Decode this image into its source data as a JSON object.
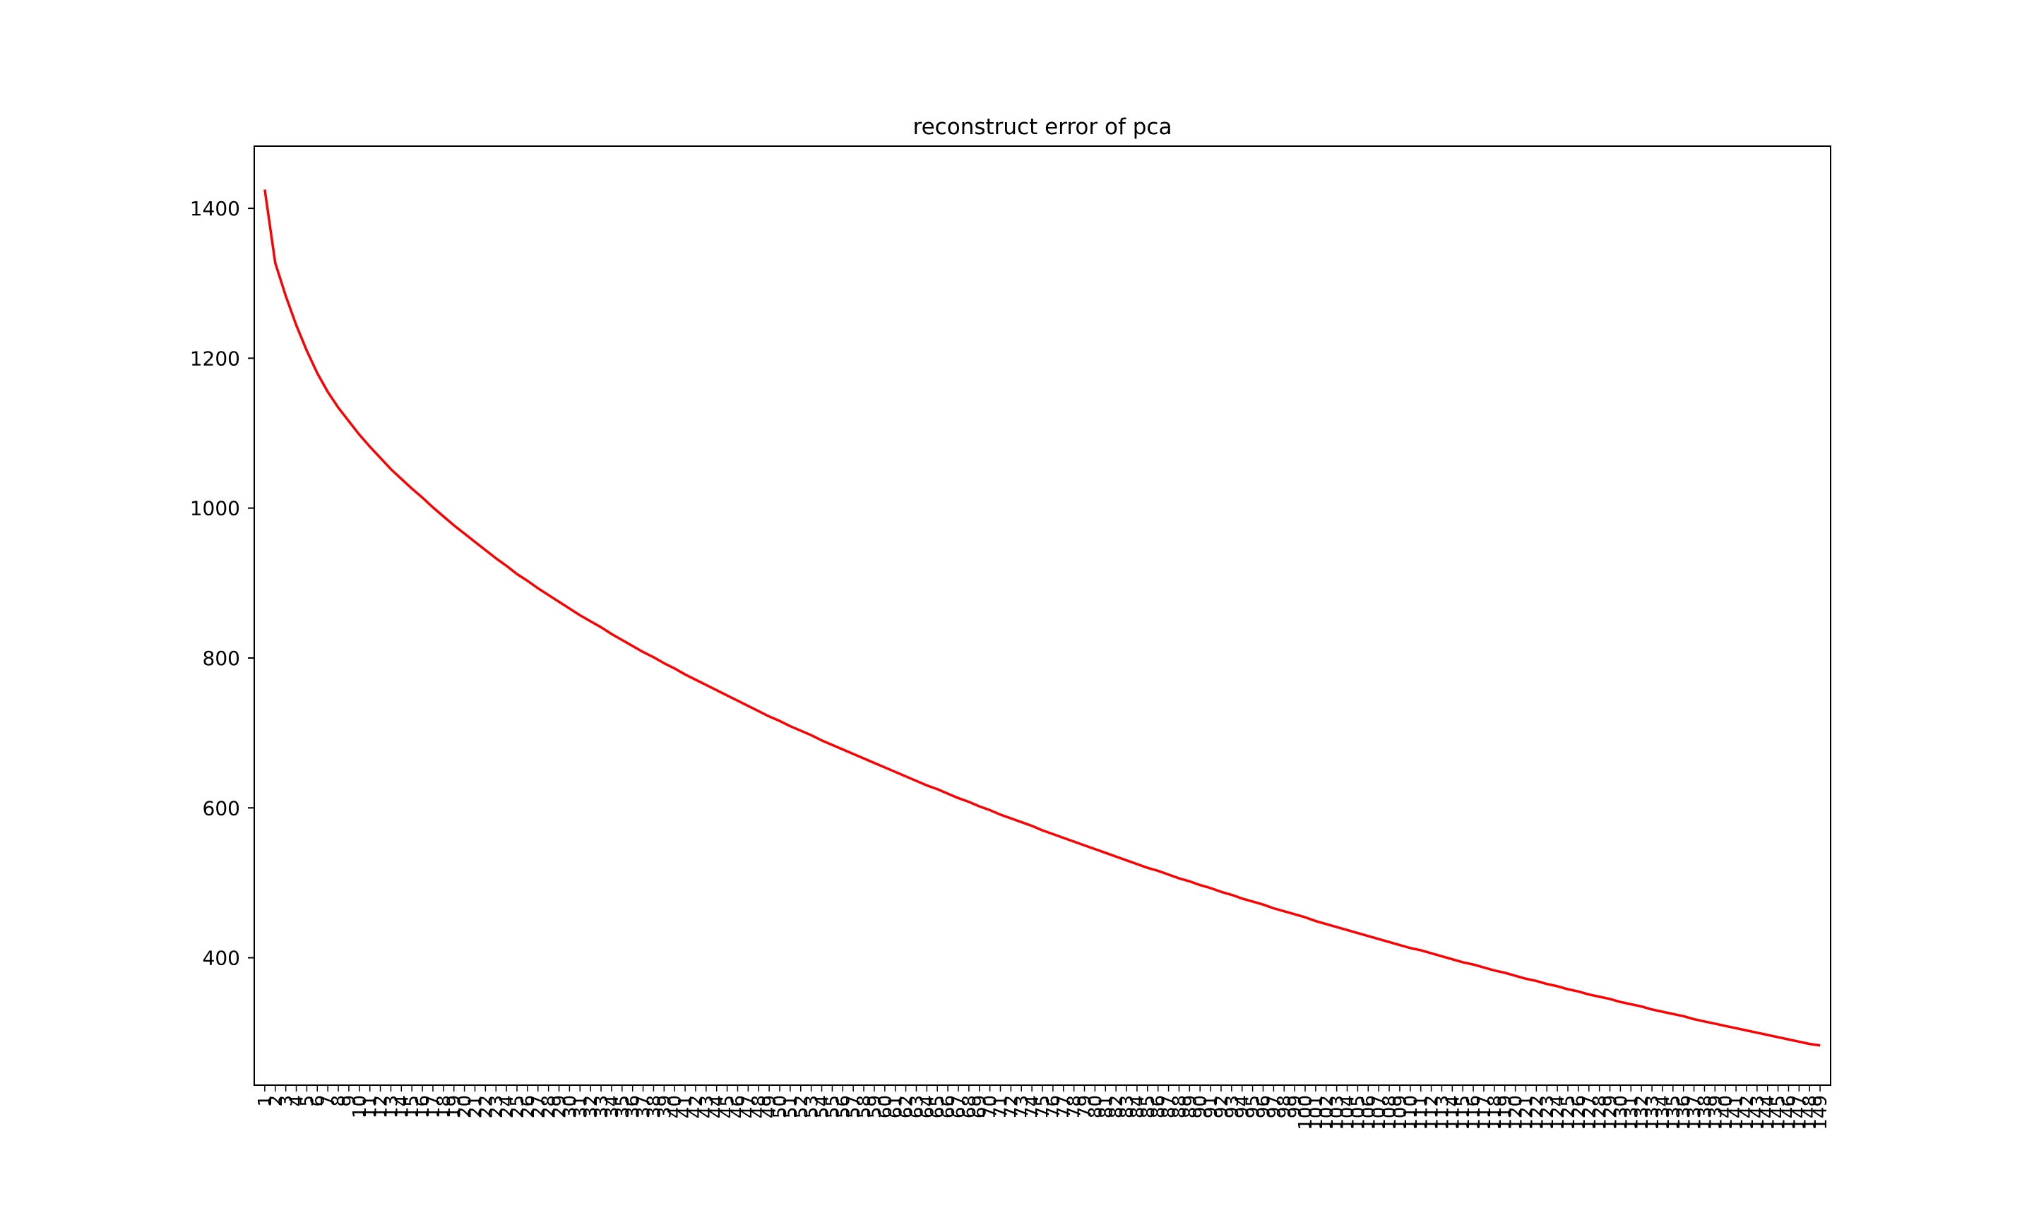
{
  "chart_data": {
    "type": "line",
    "title": "reconstruct error of pca",
    "xlabel": "",
    "ylabel": "",
    "grid": false,
    "legend": "none",
    "xlim": [
      0,
      150
    ],
    "ylim": [
      230,
      1483
    ],
    "y_ticks": [
      400,
      600,
      800,
      1000,
      1200,
      1400
    ],
    "x_tick_labels": [
      "1",
      "2",
      "3",
      "4",
      "5",
      "6",
      "7",
      "8",
      "9",
      "10",
      "11",
      "12",
      "13",
      "14",
      "15",
      "16",
      "17",
      "18",
      "19",
      "20",
      "21",
      "22",
      "23",
      "24",
      "25",
      "26",
      "27",
      "28",
      "29",
      "30",
      "31",
      "32",
      "33",
      "34",
      "35",
      "36",
      "37",
      "38",
      "39",
      "40",
      "41",
      "42",
      "43",
      "44",
      "45",
      "46",
      "47",
      "48",
      "49",
      "50",
      "51",
      "52",
      "53",
      "54",
      "55",
      "56",
      "57",
      "58",
      "59",
      "60",
      "61",
      "62",
      "63",
      "64",
      "65",
      "66",
      "67",
      "68",
      "69",
      "70",
      "71",
      "72",
      "73",
      "74",
      "75",
      "76",
      "77",
      "78",
      "79",
      "80",
      "81",
      "82",
      "83",
      "84",
      "85",
      "86",
      "87",
      "88",
      "89",
      "90",
      "91",
      "92",
      "93",
      "94",
      "95",
      "96",
      "97",
      "98",
      "99",
      "100",
      "101",
      "102",
      "103",
      "104",
      "105",
      "106",
      "107",
      "108",
      "109",
      "110",
      "111",
      "112",
      "113",
      "114",
      "115",
      "116",
      "117",
      "118",
      "119",
      "120",
      "121",
      "122",
      "123",
      "124",
      "125",
      "126",
      "127",
      "128",
      "129",
      "130",
      "131",
      "132",
      "133",
      "134",
      "135",
      "136",
      "137",
      "138",
      "139",
      "140",
      "141",
      "142",
      "143",
      "144",
      "145",
      "146",
      "147",
      "148",
      "149"
    ],
    "series": [
      {
        "color": "#ff0000",
        "x": [
          1,
          2,
          3,
          4,
          5,
          6,
          7,
          8,
          9,
          10,
          11,
          12,
          13,
          14,
          15,
          16,
          17,
          18,
          19,
          20,
          21,
          22,
          23,
          24,
          25,
          26,
          27,
          28,
          29,
          30,
          31,
          32,
          33,
          34,
          35,
          36,
          37,
          38,
          39,
          40,
          41,
          42,
          43,
          44,
          45,
          46,
          47,
          48,
          49,
          50,
          51,
          52,
          53,
          54,
          55,
          56,
          57,
          58,
          59,
          60,
          61,
          62,
          63,
          64,
          65,
          66,
          67,
          68,
          69,
          70,
          71,
          72,
          73,
          74,
          75,
          76,
          77,
          78,
          79,
          80,
          81,
          82,
          83,
          84,
          85,
          86,
          87,
          88,
          89,
          90,
          91,
          92,
          93,
          94,
          95,
          96,
          97,
          98,
          99,
          100,
          101,
          102,
          103,
          104,
          105,
          106,
          107,
          108,
          109,
          110,
          111,
          112,
          113,
          114,
          115,
          116,
          117,
          118,
          119,
          120,
          121,
          122,
          123,
          124,
          125,
          126,
          127,
          128,
          129,
          130,
          131,
          132,
          133,
          134,
          135,
          136,
          137,
          138,
          139,
          140,
          141,
          142,
          143,
          144,
          145,
          146,
          147,
          148,
          149
        ],
        "values": [
          1425,
          1327,
          1283,
          1244,
          1210,
          1180,
          1155,
          1134,
          1116,
          1098,
          1082,
          1067,
          1052,
          1039,
          1026,
          1014,
          1001,
          989,
          977,
          966,
          955,
          944,
          933,
          923,
          912,
          903,
          893,
          884,
          875,
          866,
          857,
          849,
          841,
          832,
          824,
          816,
          808,
          801,
          793,
          786,
          778,
          771,
          764,
          757,
          750,
          743,
          736,
          729,
          722,
          716,
          709,
          703,
          697,
          690,
          684,
          678,
          672,
          666,
          660,
          654,
          648,
          642,
          636,
          630,
          625,
          619,
          613,
          608,
          602,
          597,
          591,
          586,
          581,
          576,
          570,
          565,
          560,
          555,
          550,
          545,
          540,
          535,
          530,
          525,
          520,
          516,
          511,
          506,
          502,
          497,
          493,
          488,
          484,
          479,
          475,
          471,
          466,
          462,
          458,
          454,
          449,
          445,
          441,
          437,
          433,
          429,
          425,
          421,
          417,
          413,
          410,
          406,
          402,
          398,
          394,
          391,
          387,
          383,
          380,
          376,
          372,
          369,
          365,
          362,
          358,
          355,
          351,
          348,
          345,
          341,
          338,
          335,
          331,
          328,
          325,
          322,
          318,
          315,
          312,
          309,
          306,
          303,
          300,
          297,
          294,
          291,
          288,
          285,
          283
        ]
      }
    ]
  }
}
